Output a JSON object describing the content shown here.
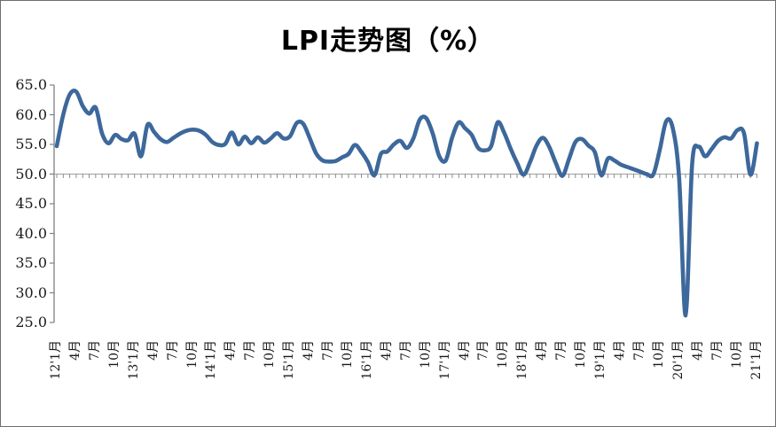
{
  "title": "LPI走势图（%）",
  "chart_data": {
    "type": "line",
    "title": "LPI走势图（%）",
    "series_name": "LPI",
    "x_start": "2012-01",
    "x_end": "2021-01",
    "x_tick_every": 3,
    "x_tick_labels": [
      "12'1月",
      "4月",
      "7月",
      "10月",
      "13'1月",
      "4月",
      "7月",
      "10月",
      "14'1月",
      "4月",
      "7月",
      "10月",
      "15'1月",
      "4月",
      "7月",
      "10月",
      "16'1月",
      "4月",
      "7月",
      "10月",
      "17'1月",
      "4月",
      "7月",
      "10月",
      "18'1月",
      "4月",
      "7月",
      "10月",
      "19'1月",
      "4月",
      "7月",
      "10月",
      "20'1月",
      "4月",
      "7月",
      "10月",
      "21'1月"
    ],
    "y_tick_labels": [
      "65.0",
      "60.0",
      "55.0",
      "50.0",
      "45.0",
      "40.0",
      "35.0",
      "30.0",
      "25.0"
    ],
    "ylim": [
      25,
      65
    ],
    "ytick_step": 5,
    "baseline_value": 50,
    "grid": "baseline-only",
    "legend": "none",
    "line_color": "#3D689B",
    "axis_color": "#808080",
    "values": [
      54.7,
      60.0,
      63.4,
      63.9,
      61.5,
      60.2,
      61.2,
      56.8,
      55.2,
      56.6,
      55.9,
      55.7,
      56.8,
      53.0,
      58.3,
      57.1,
      55.9,
      55.4,
      56.1,
      56.8,
      57.3,
      57.5,
      57.3,
      56.6,
      55.4,
      54.9,
      55.1,
      57.0,
      55.0,
      56.3,
      55.2,
      56.2,
      55.3,
      56.0,
      56.9,
      56.0,
      56.4,
      58.6,
      58.5,
      56.1,
      53.5,
      52.3,
      52.1,
      52.2,
      52.8,
      53.4,
      54.9,
      53.7,
      52.0,
      49.8,
      53.4,
      53.8,
      55.0,
      55.6,
      54.4,
      56.0,
      59.2,
      59.4,
      56.8,
      53.0,
      52.3,
      56.2,
      58.7,
      57.7,
      56.6,
      54.4,
      54.0,
      54.7,
      58.7,
      57.0,
      54.3,
      51.9,
      49.9,
      52.0,
      54.8,
      56.1,
      54.5,
      51.8,
      49.7,
      52.5,
      55.4,
      55.9,
      54.8,
      53.7,
      49.8,
      52.6,
      52.3,
      51.6,
      51.2,
      50.8,
      50.4,
      50.0,
      49.9,
      54.0,
      58.9,
      57.8,
      49.3,
      26.2,
      51.6,
      54.6,
      53.0,
      54.2,
      55.6,
      56.2,
      56.0,
      57.4,
      56.9,
      49.9,
      55.2
    ]
  }
}
